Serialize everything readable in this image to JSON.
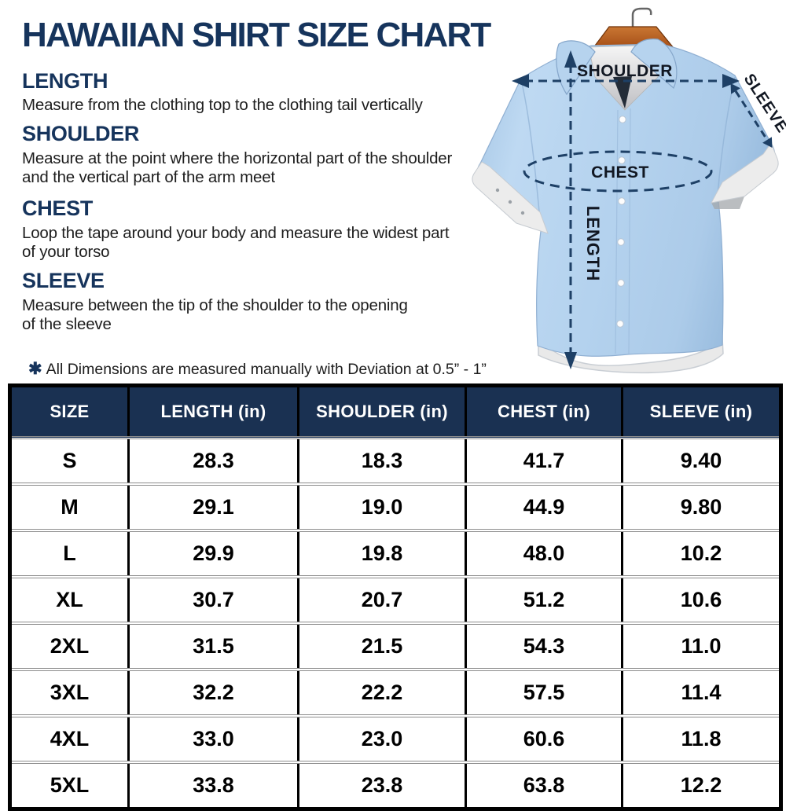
{
  "page_title": "HAWAIIAN SHIRT SIZE CHART",
  "accent_color": "#16345c",
  "sections": [
    {
      "heading": "LENGTH",
      "body": "Measure from the clothing top to the clothing tail vertically"
    },
    {
      "heading": "SHOULDER",
      "body": "Measure at the point where the horizontal part of the shoulder\nand the vertical part of the arm meet"
    },
    {
      "heading": "CHEST",
      "body": "Loop the tape around your body and measure the widest part\nof your torso"
    },
    {
      "heading": "SLEEVE",
      "body": "Measure between the tip of the shoulder to the opening\nof the sleeve"
    }
  ],
  "note": {
    "marker": "✱",
    "text": "All Dimensions are measured manually with Deviation at 0.5” - 1”"
  },
  "diagram": {
    "shoulder_label": "SHOULDER",
    "sleeve_label": "SLEEVE",
    "chest_label": "CHEST",
    "length_label": "LENGTH",
    "shirt_color": "#b6d3ee",
    "hanger_color": "#b05a24",
    "arrow_color": "#1e4066"
  },
  "table": {
    "header_bg": "#1a3152",
    "columns": [
      "SIZE",
      "LENGTH (in)",
      "SHOULDER (in)",
      "CHEST (in)",
      "SLEEVE (in)"
    ],
    "rows": [
      [
        "S",
        "28.3",
        "18.3",
        "41.7",
        "9.40"
      ],
      [
        "M",
        "29.1",
        "19.0",
        "44.9",
        "9.80"
      ],
      [
        "L",
        "29.9",
        "19.8",
        "48.0",
        "10.2"
      ],
      [
        "XL",
        "30.7",
        "20.7",
        "51.2",
        "10.6"
      ],
      [
        "2XL",
        "31.5",
        "21.5",
        "54.3",
        "11.0"
      ],
      [
        "3XL",
        "32.2",
        "22.2",
        "57.5",
        "11.4"
      ],
      [
        "4XL",
        "33.0",
        "23.0",
        "60.6",
        "11.8"
      ],
      [
        "5XL",
        "33.8",
        "23.8",
        "63.8",
        "12.2"
      ]
    ]
  }
}
